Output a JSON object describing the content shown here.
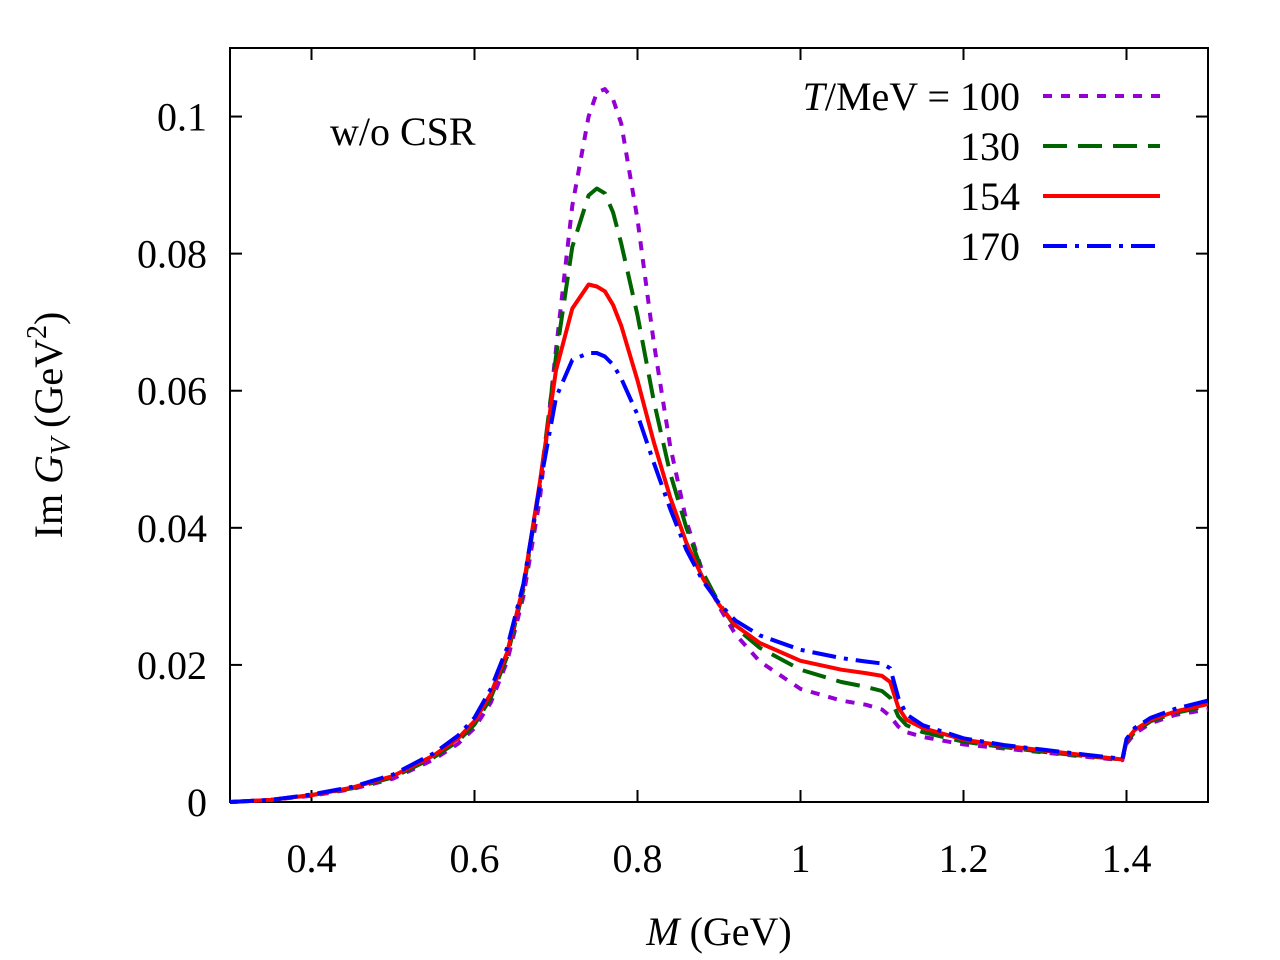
{
  "chart_data": {
    "type": "line",
    "title": "",
    "annotation": "w/o CSR",
    "xlabel": {
      "symbol": "M",
      "rest": " (GeV)"
    },
    "ylabel": {
      "prefix": "Im ",
      "symbol": "G",
      "subscript": "V",
      "unit_open": " (GeV",
      "unit_sup": "2",
      "unit_close": ")"
    },
    "xlim": [
      0.3,
      1.5
    ],
    "ylim": [
      0,
      0.11
    ],
    "x_ticks": [
      0.4,
      0.6,
      0.8,
      1.0,
      1.2,
      1.4
    ],
    "x_tick_labels": [
      "0.4",
      "0.6",
      "0.8",
      "1",
      "1.2",
      "1.4"
    ],
    "y_ticks": [
      0,
      0.02,
      0.04,
      0.06,
      0.08,
      0.1
    ],
    "y_tick_labels": [
      "0",
      "0.02",
      "0.04",
      "0.06",
      "0.08",
      "0.1"
    ],
    "legend": {
      "placement": "top-right",
      "header_symbol": "T",
      "header_rest": "/MeV = "
    },
    "series": [
      {
        "name": "T = 100 MeV",
        "label": "100",
        "color": "#9400d3",
        "dash": "short-dash",
        "x": [
          0.3,
          0.35,
          0.4,
          0.45,
          0.5,
          0.55,
          0.58,
          0.6,
          0.62,
          0.64,
          0.66,
          0.68,
          0.7,
          0.72,
          0.74,
          0.75,
          0.76,
          0.77,
          0.78,
          0.8,
          0.82,
          0.84,
          0.86,
          0.88,
          0.9,
          0.92,
          0.95,
          1.0,
          1.05,
          1.08,
          1.1,
          1.11,
          1.12,
          1.13,
          1.15,
          1.2,
          1.25,
          1.3,
          1.35,
          1.395,
          1.4,
          1.41,
          1.43,
          1.46,
          1.5
        ],
        "y": [
          0.0,
          0.0003,
          0.0009,
          0.0019,
          0.0034,
          0.0062,
          0.0085,
          0.0108,
          0.0145,
          0.0205,
          0.03,
          0.044,
          0.066,
          0.087,
          0.1,
          0.1035,
          0.104,
          0.1025,
          0.099,
          0.085,
          0.067,
          0.052,
          0.041,
          0.0335,
          0.0285,
          0.0245,
          0.0205,
          0.0165,
          0.0148,
          0.0142,
          0.0135,
          0.0125,
          0.011,
          0.0102,
          0.0095,
          0.0084,
          0.0078,
          0.0072,
          0.0066,
          0.0061,
          0.0085,
          0.01,
          0.0115,
          0.0127,
          0.0135
        ]
      },
      {
        "name": "T = 130 MeV",
        "label": "130",
        "color": "#006400",
        "dash": "long-dash",
        "x": [
          0.3,
          0.35,
          0.4,
          0.45,
          0.5,
          0.55,
          0.58,
          0.6,
          0.62,
          0.64,
          0.66,
          0.68,
          0.7,
          0.72,
          0.74,
          0.75,
          0.76,
          0.77,
          0.78,
          0.8,
          0.82,
          0.84,
          0.86,
          0.88,
          0.9,
          0.92,
          0.95,
          1.0,
          1.05,
          1.08,
          1.1,
          1.11,
          1.12,
          1.13,
          1.15,
          1.2,
          1.25,
          1.3,
          1.35,
          1.395,
          1.4,
          1.41,
          1.43,
          1.46,
          1.5
        ],
        "y": [
          0.0,
          0.0003,
          0.001,
          0.002,
          0.0036,
          0.0065,
          0.0089,
          0.0113,
          0.0152,
          0.0212,
          0.031,
          0.046,
          0.065,
          0.081,
          0.0885,
          0.0895,
          0.0888,
          0.086,
          0.0815,
          0.071,
          0.0585,
          0.048,
          0.04,
          0.0335,
          0.029,
          0.0255,
          0.0225,
          0.0193,
          0.0175,
          0.0168,
          0.0162,
          0.0152,
          0.0125,
          0.0112,
          0.0102,
          0.0088,
          0.008,
          0.0073,
          0.0067,
          0.0062,
          0.0088,
          0.0102,
          0.0118,
          0.013,
          0.014
        ]
      },
      {
        "name": "T = 154 MeV",
        "label": "154",
        "color": "#ff0000",
        "dash": "solid",
        "x": [
          0.3,
          0.35,
          0.4,
          0.45,
          0.5,
          0.55,
          0.58,
          0.6,
          0.62,
          0.64,
          0.66,
          0.68,
          0.7,
          0.72,
          0.74,
          0.75,
          0.76,
          0.77,
          0.78,
          0.8,
          0.82,
          0.84,
          0.86,
          0.88,
          0.9,
          0.92,
          0.95,
          1.0,
          1.05,
          1.08,
          1.1,
          1.11,
          1.12,
          1.13,
          1.15,
          1.2,
          1.25,
          1.3,
          1.35,
          1.395,
          1.4,
          1.41,
          1.43,
          1.46,
          1.5
        ],
        "y": [
          0.0,
          0.0003,
          0.001,
          0.0021,
          0.0038,
          0.0068,
          0.0093,
          0.0118,
          0.0158,
          0.0218,
          0.0315,
          0.0465,
          0.063,
          0.072,
          0.0755,
          0.0752,
          0.0745,
          0.0725,
          0.0695,
          0.0615,
          0.0525,
          0.0445,
          0.0378,
          0.0327,
          0.0288,
          0.0258,
          0.0232,
          0.0206,
          0.0193,
          0.0188,
          0.0184,
          0.0175,
          0.0138,
          0.012,
          0.0108,
          0.0091,
          0.0082,
          0.0075,
          0.0068,
          0.0062,
          0.009,
          0.0105,
          0.012,
          0.0132,
          0.0143
        ]
      },
      {
        "name": "T = 170 MeV",
        "label": "170",
        "color": "#0000ff",
        "dash": "dash-dot",
        "x": [
          0.3,
          0.35,
          0.4,
          0.45,
          0.5,
          0.55,
          0.58,
          0.6,
          0.62,
          0.64,
          0.66,
          0.68,
          0.7,
          0.72,
          0.74,
          0.75,
          0.76,
          0.77,
          0.78,
          0.8,
          0.82,
          0.84,
          0.86,
          0.88,
          0.9,
          0.92,
          0.95,
          1.0,
          1.05,
          1.08,
          1.1,
          1.11,
          1.12,
          1.13,
          1.15,
          1.2,
          1.25,
          1.3,
          1.35,
          1.395,
          1.4,
          1.41,
          1.43,
          1.46,
          1.5
        ],
        "y": [
          0.0,
          0.0003,
          0.0011,
          0.0022,
          0.004,
          0.0071,
          0.0097,
          0.0123,
          0.0165,
          0.0225,
          0.0318,
          0.046,
          0.059,
          0.0645,
          0.0655,
          0.0655,
          0.065,
          0.0638,
          0.0618,
          0.0565,
          0.0495,
          0.0428,
          0.0368,
          0.0323,
          0.029,
          0.0265,
          0.0243,
          0.0222,
          0.021,
          0.0205,
          0.0202,
          0.0195,
          0.0152,
          0.0128,
          0.0112,
          0.0093,
          0.0083,
          0.0076,
          0.0069,
          0.0063,
          0.0092,
          0.0108,
          0.0123,
          0.0136,
          0.0148
        ]
      }
    ]
  }
}
